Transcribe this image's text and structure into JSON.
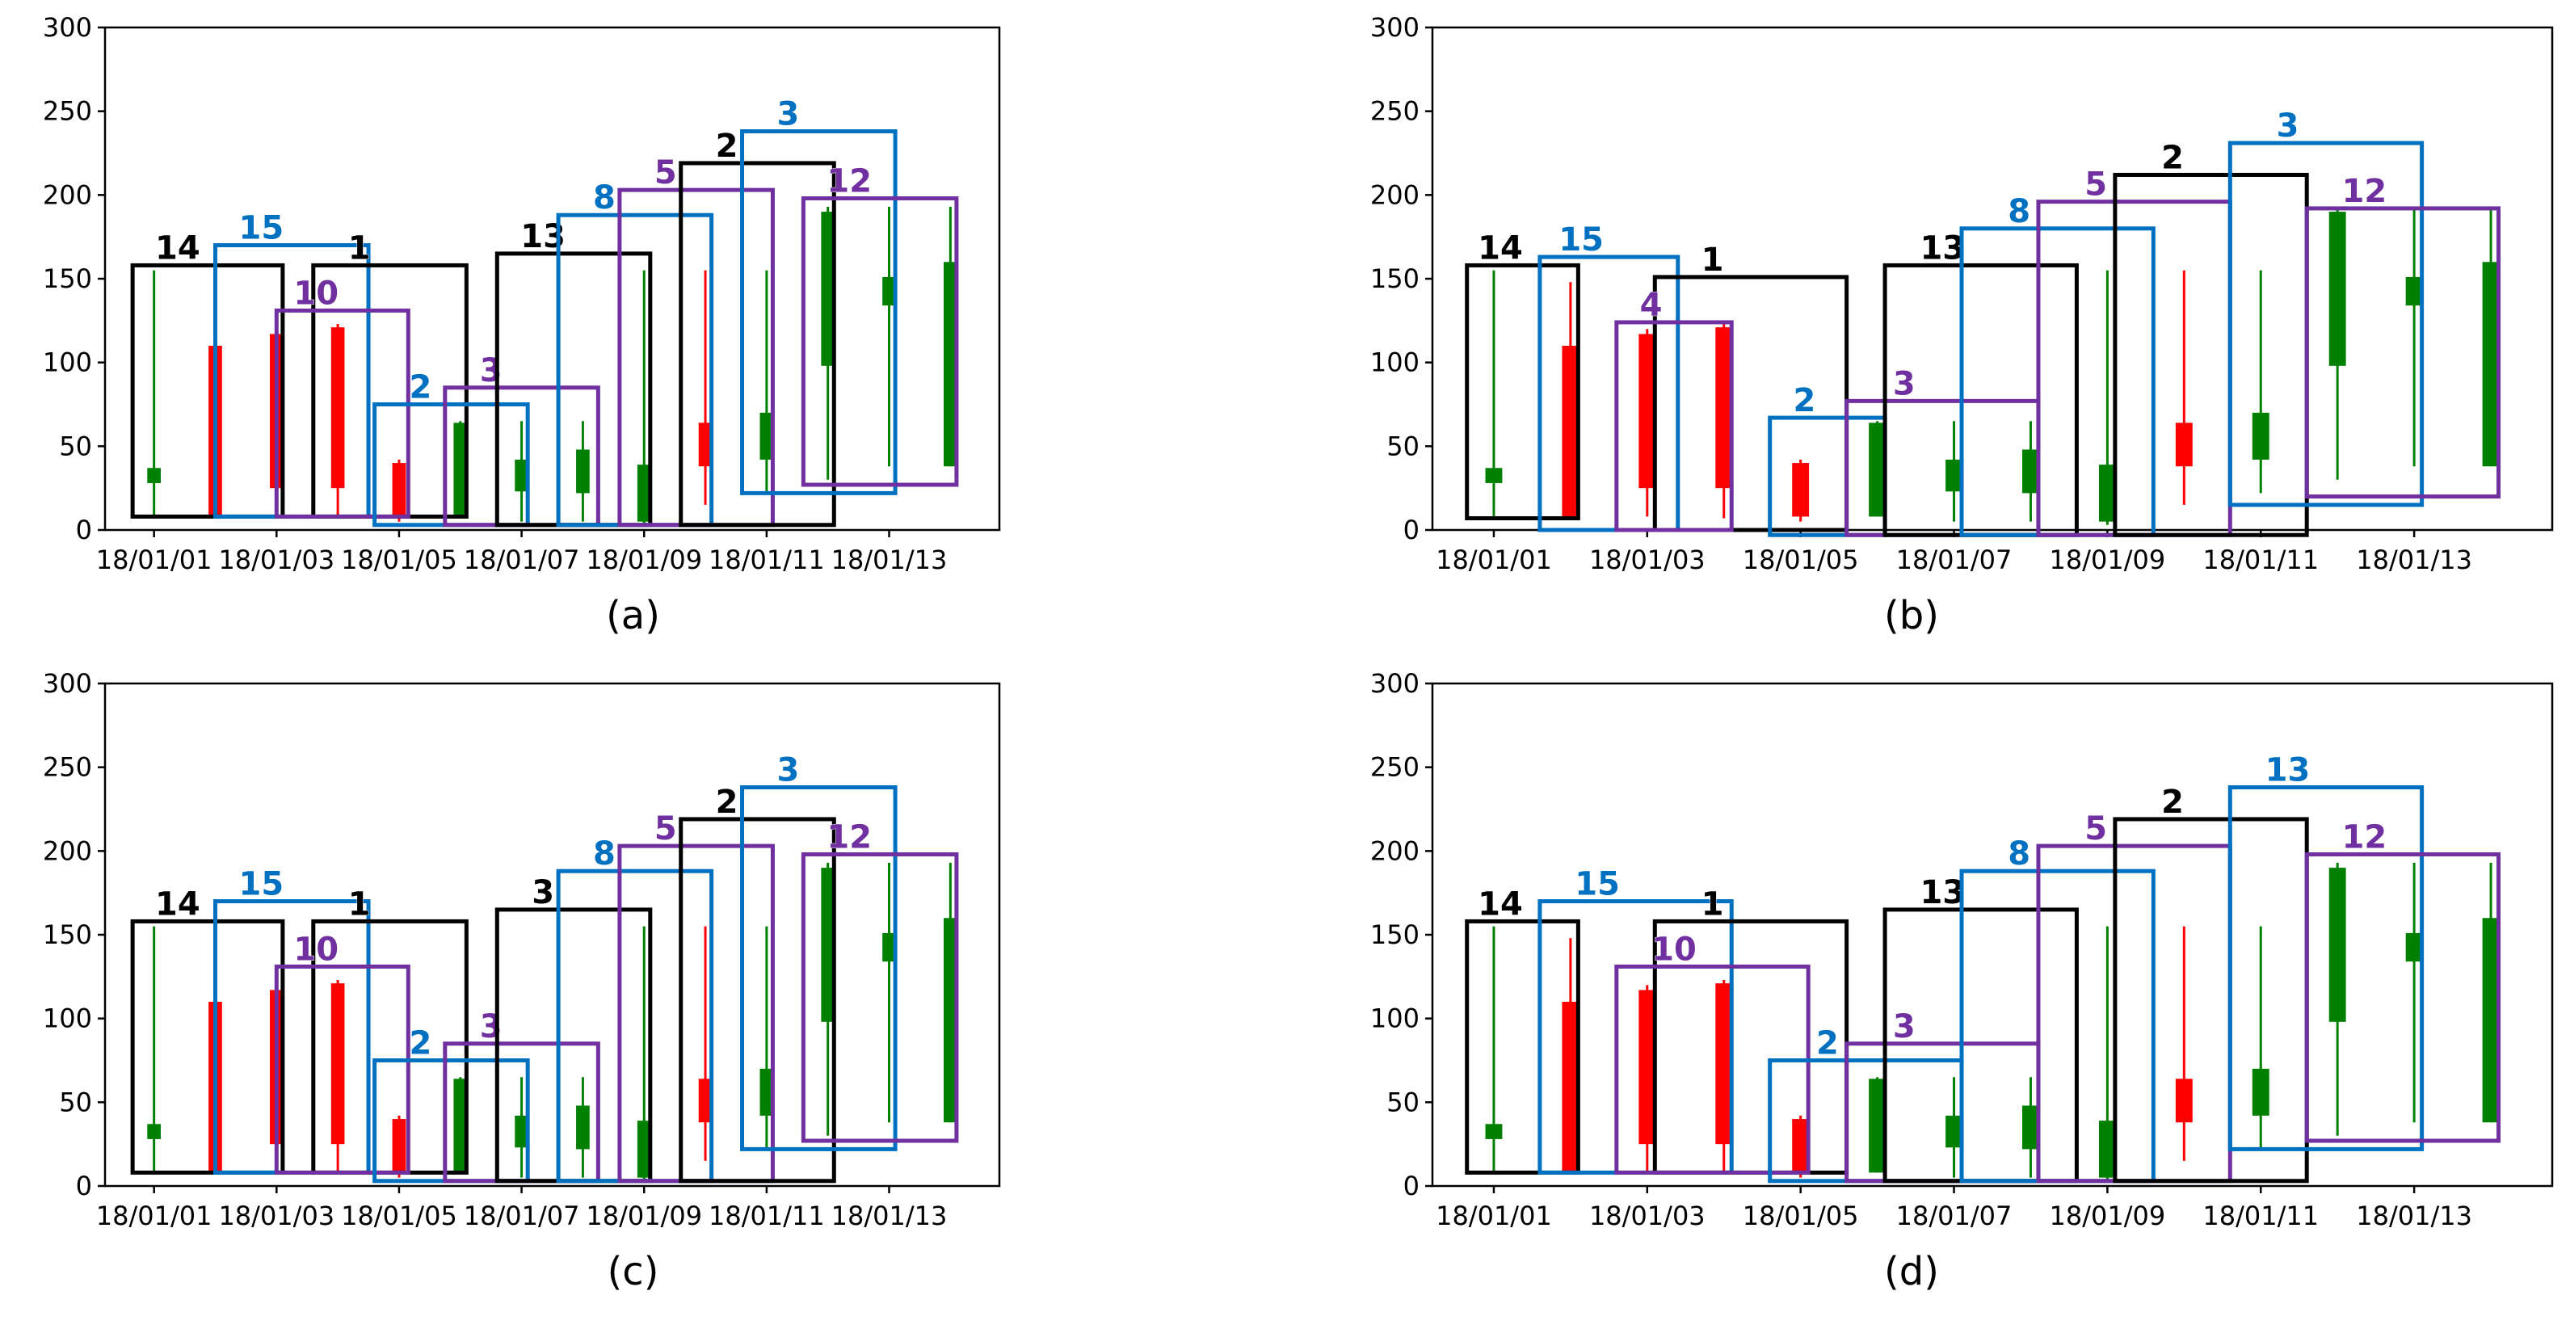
{
  "chart_data": [
    {
      "type": "candlestick",
      "panel": "(a)",
      "ylim": [
        0,
        300
      ],
      "yticks": [
        "0",
        "50",
        "100",
        "150",
        "200",
        "250",
        "300"
      ],
      "xticks": [
        {
          "day": 1,
          "label": "18/01/01"
        },
        {
          "day": 3,
          "label": "18/01/03"
        },
        {
          "day": 5,
          "label": "18/01/05"
        },
        {
          "day": 7,
          "label": "18/01/07"
        },
        {
          "day": 9,
          "label": "18/01/09"
        },
        {
          "day": 11,
          "label": "18/01/11"
        },
        {
          "day": 13,
          "label": "18/01/13"
        }
      ],
      "candles": [
        {
          "day": 1,
          "low": 7,
          "high": 155,
          "open": 28,
          "close": 37
        },
        {
          "day": 2,
          "low": 7,
          "high": 148,
          "open": 110,
          "close": 8
        },
        {
          "day": 3,
          "low": 8,
          "high": 120,
          "open": 117,
          "close": 25
        },
        {
          "day": 4,
          "low": 7,
          "high": 123,
          "open": 121,
          "close": 25
        },
        {
          "day": 5,
          "low": 5,
          "high": 42,
          "open": 40,
          "close": 8
        },
        {
          "day": 6,
          "low": 8,
          "high": 65,
          "open": 8,
          "close": 64
        },
        {
          "day": 7,
          "low": 5,
          "high": 65,
          "open": 23,
          "close": 42
        },
        {
          "day": 8,
          "low": 5,
          "high": 65,
          "open": 22,
          "close": 48
        },
        {
          "day": 9,
          "low": 3,
          "high": 155,
          "open": 5,
          "close": 39
        },
        {
          "day": 10,
          "low": 15,
          "high": 155,
          "open": 64,
          "close": 38
        },
        {
          "day": 11,
          "low": 22,
          "high": 155,
          "open": 42,
          "close": 70
        },
        {
          "day": 12,
          "low": 30,
          "high": 193,
          "open": 98,
          "close": 190
        },
        {
          "day": 13,
          "low": 38,
          "high": 193,
          "open": 134,
          "close": 151
        },
        {
          "day": 14,
          "low": 38,
          "high": 193,
          "open": 38,
          "close": 160
        }
      ],
      "boxes": [
        {
          "label": "14",
          "color": "black",
          "x0": 0.65,
          "x1": 3.1,
          "y0": 8,
          "y1": 158
        },
        {
          "label": "15",
          "color": "blue",
          "x0": 2.0,
          "x1": 4.5,
          "y0": 8,
          "y1": 170
        },
        {
          "label": "1",
          "color": "black",
          "x0": 3.6,
          "x1": 6.1,
          "y0": 8,
          "y1": 158
        },
        {
          "label": "10",
          "color": "purple",
          "x0": 3.0,
          "x1": 5.15,
          "y0": 8,
          "y1": 131
        },
        {
          "label": "2",
          "color": "blue",
          "x0": 4.6,
          "x1": 7.1,
          "y0": 3,
          "y1": 75
        },
        {
          "label": "3",
          "color": "purple",
          "x0": 5.75,
          "x1": 8.25,
          "y0": 3,
          "y1": 85
        },
        {
          "label": "13",
          "color": "black",
          "x0": 6.6,
          "x1": 9.1,
          "y0": 3,
          "y1": 165
        },
        {
          "label": "8",
          "color": "blue",
          "x0": 7.6,
          "x1": 10.1,
          "y0": 3,
          "y1": 188
        },
        {
          "label": "5",
          "color": "purple",
          "x0": 8.6,
          "x1": 11.1,
          "y0": 3,
          "y1": 203
        },
        {
          "label": "2",
          "color": "black",
          "x0": 9.6,
          "x1": 12.1,
          "y0": 3,
          "y1": 219
        },
        {
          "label": "3",
          "color": "blue",
          "x0": 10.6,
          "x1": 13.1,
          "y0": 22,
          "y1": 238
        },
        {
          "label": "12",
          "color": "purple",
          "x0": 11.6,
          "x1": 14.1,
          "y0": 27,
          "y1": 198
        }
      ]
    },
    {
      "type": "candlestick",
      "panel": "(b)",
      "ylim": [
        0,
        300
      ],
      "yticks": [
        "0",
        "50",
        "100",
        "150",
        "200",
        "250",
        "300"
      ],
      "xticks": [
        {
          "day": 1,
          "label": "18/01/01"
        },
        {
          "day": 3,
          "label": "18/01/03"
        },
        {
          "day": 5,
          "label": "18/01/05"
        },
        {
          "day": 7,
          "label": "18/01/07"
        },
        {
          "day": 9,
          "label": "18/01/09"
        },
        {
          "day": 11,
          "label": "18/01/11"
        },
        {
          "day": 13,
          "label": "18/01/13"
        }
      ],
      "candles": [
        {
          "day": 1,
          "low": 7,
          "high": 155,
          "open": 28,
          "close": 37
        },
        {
          "day": 2,
          "low": 7,
          "high": 148,
          "open": 110,
          "close": 8
        },
        {
          "day": 3,
          "low": 8,
          "high": 120,
          "open": 117,
          "close": 25
        },
        {
          "day": 4,
          "low": 7,
          "high": 123,
          "open": 121,
          "close": 25
        },
        {
          "day": 5,
          "low": 5,
          "high": 42,
          "open": 40,
          "close": 8
        },
        {
          "day": 6,
          "low": 8,
          "high": 65,
          "open": 8,
          "close": 64
        },
        {
          "day": 7,
          "low": 5,
          "high": 65,
          "open": 23,
          "close": 42
        },
        {
          "day": 8,
          "low": 5,
          "high": 65,
          "open": 22,
          "close": 48
        },
        {
          "day": 9,
          "low": 3,
          "high": 155,
          "open": 5,
          "close": 39
        },
        {
          "day": 10,
          "low": 15,
          "high": 155,
          "open": 64,
          "close": 38
        },
        {
          "day": 11,
          "low": 22,
          "high": 155,
          "open": 42,
          "close": 70
        },
        {
          "day": 12,
          "low": 30,
          "high": 193,
          "open": 98,
          "close": 190
        },
        {
          "day": 13,
          "low": 38,
          "high": 193,
          "open": 134,
          "close": 151
        },
        {
          "day": 14,
          "low": 38,
          "high": 193,
          "open": 38,
          "close": 160
        }
      ],
      "boxes": [
        {
          "label": "14",
          "color": "black",
          "x0": 0.65,
          "x1": 2.1,
          "y0": 7,
          "y1": 158
        },
        {
          "label": "15",
          "color": "blue",
          "x0": 1.6,
          "x1": 3.4,
          "y0": 0,
          "y1": 163
        },
        {
          "label": "1",
          "color": "black",
          "x0": 3.1,
          "x1": 5.6,
          "y0": 0,
          "y1": 151
        },
        {
          "label": "4",
          "color": "purple",
          "x0": 2.6,
          "x1": 4.1,
          "y0": 0,
          "y1": 124
        },
        {
          "label": "2",
          "color": "blue",
          "x0": 4.6,
          "x1": 6.1,
          "y0": -3,
          "y1": 67
        },
        {
          "label": "3",
          "color": "purple",
          "x0": 5.6,
          "x1": 8.1,
          "y0": -3,
          "y1": 77
        },
        {
          "label": "13",
          "color": "black",
          "x0": 6.1,
          "x1": 8.6,
          "y0": -3,
          "y1": 158
        },
        {
          "label": "8",
          "color": "blue",
          "x0": 7.1,
          "x1": 9.6,
          "y0": -3,
          "y1": 180
        },
        {
          "label": "5",
          "color": "purple",
          "x0": 8.1,
          "x1": 10.6,
          "y0": -3,
          "y1": 196
        },
        {
          "label": "2",
          "color": "black",
          "x0": 9.1,
          "x1": 11.6,
          "y0": -3,
          "y1": 212
        },
        {
          "label": "3",
          "color": "blue",
          "x0": 10.6,
          "x1": 13.1,
          "y0": 15,
          "y1": 231
        },
        {
          "label": "12",
          "color": "purple",
          "x0": 11.6,
          "x1": 14.1,
          "y0": 20,
          "y1": 192
        }
      ]
    },
    {
      "type": "candlestick",
      "panel": "(c)",
      "ylim": [
        0,
        300
      ],
      "yticks": [
        "0",
        "50",
        "100",
        "150",
        "200",
        "250",
        "300"
      ],
      "xticks": [
        {
          "day": 1,
          "label": "18/01/01"
        },
        {
          "day": 3,
          "label": "18/01/03"
        },
        {
          "day": 5,
          "label": "18/01/05"
        },
        {
          "day": 7,
          "label": "18/01/07"
        },
        {
          "day": 9,
          "label": "18/01/09"
        },
        {
          "day": 11,
          "label": "18/01/11"
        },
        {
          "day": 13,
          "label": "18/01/13"
        }
      ],
      "candles": [
        {
          "day": 1,
          "low": 7,
          "high": 155,
          "open": 28,
          "close": 37
        },
        {
          "day": 2,
          "low": 7,
          "high": 148,
          "open": 110,
          "close": 8
        },
        {
          "day": 3,
          "low": 8,
          "high": 120,
          "open": 117,
          "close": 25
        },
        {
          "day": 4,
          "low": 7,
          "high": 123,
          "open": 121,
          "close": 25
        },
        {
          "day": 5,
          "low": 5,
          "high": 42,
          "open": 40,
          "close": 8
        },
        {
          "day": 6,
          "low": 8,
          "high": 65,
          "open": 8,
          "close": 64
        },
        {
          "day": 7,
          "low": 5,
          "high": 65,
          "open": 23,
          "close": 42
        },
        {
          "day": 8,
          "low": 5,
          "high": 65,
          "open": 22,
          "close": 48
        },
        {
          "day": 9,
          "low": 3,
          "high": 155,
          "open": 5,
          "close": 39
        },
        {
          "day": 10,
          "low": 15,
          "high": 155,
          "open": 64,
          "close": 38
        },
        {
          "day": 11,
          "low": 22,
          "high": 155,
          "open": 42,
          "close": 70
        },
        {
          "day": 12,
          "low": 30,
          "high": 193,
          "open": 98,
          "close": 190
        },
        {
          "day": 13,
          "low": 38,
          "high": 193,
          "open": 134,
          "close": 151
        },
        {
          "day": 14,
          "low": 38,
          "high": 193,
          "open": 38,
          "close": 160
        }
      ],
      "boxes": [
        {
          "label": "14",
          "color": "black",
          "x0": 0.65,
          "x1": 3.1,
          "y0": 8,
          "y1": 158
        },
        {
          "label": "15",
          "color": "blue",
          "x0": 2.0,
          "x1": 4.5,
          "y0": 8,
          "y1": 170
        },
        {
          "label": "1",
          "color": "black",
          "x0": 3.6,
          "x1": 6.1,
          "y0": 8,
          "y1": 158
        },
        {
          "label": "10",
          "color": "purple",
          "x0": 3.0,
          "x1": 5.15,
          "y0": 8,
          "y1": 131
        },
        {
          "label": "2",
          "color": "blue",
          "x0": 4.6,
          "x1": 7.1,
          "y0": 3,
          "y1": 75
        },
        {
          "label": "3",
          "color": "purple",
          "x0": 5.75,
          "x1": 8.25,
          "y0": 3,
          "y1": 85
        },
        {
          "label": "3",
          "color": "black",
          "x0": 6.6,
          "x1": 9.1,
          "y0": 3,
          "y1": 165
        },
        {
          "label": "8",
          "color": "blue",
          "x0": 7.6,
          "x1": 10.1,
          "y0": 3,
          "y1": 188
        },
        {
          "label": "5",
          "color": "purple",
          "x0": 8.6,
          "x1": 11.1,
          "y0": 3,
          "y1": 203
        },
        {
          "label": "2",
          "color": "black",
          "x0": 9.6,
          "x1": 12.1,
          "y0": 3,
          "y1": 219
        },
        {
          "label": "3",
          "color": "blue",
          "x0": 10.6,
          "x1": 13.1,
          "y0": 22,
          "y1": 238
        },
        {
          "label": "12",
          "color": "purple",
          "x0": 11.6,
          "x1": 14.1,
          "y0": 27,
          "y1": 198
        }
      ]
    },
    {
      "type": "candlestick",
      "panel": "(d)",
      "ylim": [
        0,
        300
      ],
      "yticks": [
        "0",
        "50",
        "100",
        "150",
        "200",
        "250",
        "300"
      ],
      "xticks": [
        {
          "day": 1,
          "label": "18/01/01"
        },
        {
          "day": 3,
          "label": "18/01/03"
        },
        {
          "day": 5,
          "label": "18/01/05"
        },
        {
          "day": 7,
          "label": "18/01/07"
        },
        {
          "day": 9,
          "label": "18/01/09"
        },
        {
          "day": 11,
          "label": "18/01/11"
        },
        {
          "day": 13,
          "label": "18/01/13"
        }
      ],
      "candles": [
        {
          "day": 1,
          "low": 7,
          "high": 155,
          "open": 28,
          "close": 37
        },
        {
          "day": 2,
          "low": 7,
          "high": 148,
          "open": 110,
          "close": 8
        },
        {
          "day": 3,
          "low": 8,
          "high": 120,
          "open": 117,
          "close": 25
        },
        {
          "day": 4,
          "low": 7,
          "high": 123,
          "open": 121,
          "close": 25
        },
        {
          "day": 5,
          "low": 5,
          "high": 42,
          "open": 40,
          "close": 8
        },
        {
          "day": 6,
          "low": 8,
          "high": 65,
          "open": 8,
          "close": 64
        },
        {
          "day": 7,
          "low": 5,
          "high": 65,
          "open": 23,
          "close": 42
        },
        {
          "day": 8,
          "low": 5,
          "high": 65,
          "open": 22,
          "close": 48
        },
        {
          "day": 9,
          "low": 3,
          "high": 155,
          "open": 5,
          "close": 39
        },
        {
          "day": 10,
          "low": 15,
          "high": 155,
          "open": 64,
          "close": 38
        },
        {
          "day": 11,
          "low": 22,
          "high": 155,
          "open": 42,
          "close": 70
        },
        {
          "day": 12,
          "low": 30,
          "high": 193,
          "open": 98,
          "close": 190
        },
        {
          "day": 13,
          "low": 38,
          "high": 193,
          "open": 134,
          "close": 151
        },
        {
          "day": 14,
          "low": 38,
          "high": 193,
          "open": 38,
          "close": 160
        }
      ],
      "boxes": [
        {
          "label": "14",
          "color": "black",
          "x0": 0.65,
          "x1": 2.1,
          "y0": 8,
          "y1": 158
        },
        {
          "label": "15",
          "color": "blue",
          "x0": 1.6,
          "x1": 4.1,
          "y0": 8,
          "y1": 170
        },
        {
          "label": "1",
          "color": "black",
          "x0": 3.1,
          "x1": 5.6,
          "y0": 8,
          "y1": 158
        },
        {
          "label": "10",
          "color": "purple",
          "x0": 2.6,
          "x1": 5.1,
          "y0": 8,
          "y1": 131
        },
        {
          "label": "2",
          "color": "blue",
          "x0": 4.6,
          "x1": 7.1,
          "y0": 3,
          "y1": 75
        },
        {
          "label": "3",
          "color": "purple",
          "x0": 5.6,
          "x1": 8.1,
          "y0": 3,
          "y1": 85
        },
        {
          "label": "13",
          "color": "black",
          "x0": 6.1,
          "x1": 8.6,
          "y0": 3,
          "y1": 165
        },
        {
          "label": "8",
          "color": "blue",
          "x0": 7.1,
          "x1": 9.6,
          "y0": 3,
          "y1": 188
        },
        {
          "label": "5",
          "color": "purple",
          "x0": 8.1,
          "x1": 10.6,
          "y0": 3,
          "y1": 203
        },
        {
          "label": "2",
          "color": "black",
          "x0": 9.1,
          "x1": 11.6,
          "y0": 3,
          "y1": 219
        },
        {
          "label": "13",
          "color": "blue",
          "x0": 10.6,
          "x1": 13.1,
          "y0": 22,
          "y1": 238
        },
        {
          "label": "12",
          "color": "purple",
          "x0": 11.6,
          "x1": 14.1,
          "y0": 27,
          "y1": 198
        }
      ]
    }
  ],
  "colors": {
    "up": "#008000",
    "down": "#ff0000",
    "black": "#000000",
    "blue": "#0070c0",
    "purple": "#7030a0"
  }
}
